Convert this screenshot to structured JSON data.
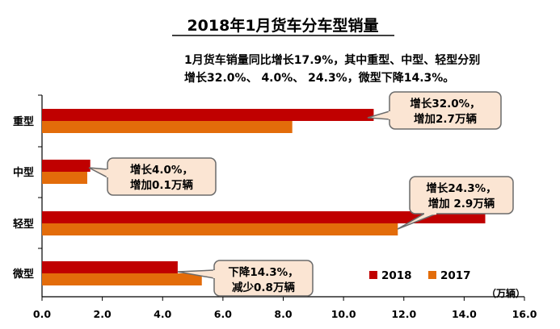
{
  "chart_data": {
    "type": "bar",
    "orientation": "horizontal",
    "title": "2018年1月货车分车型销量",
    "subtitle_lines": [
      "1月货车销量同比增长17.9%，其中重型、中型、轻型分别",
      "增长32.0%、 4.0%、 24.3%，微型下降14.3%。"
    ],
    "categories": [
      "重型",
      "中型",
      "轻型",
      "微型"
    ],
    "series": [
      {
        "name": "2018",
        "color": "#c00000",
        "values": [
          11.0,
          1.6,
          14.7,
          4.5
        ]
      },
      {
        "name": "2017",
        "color": "#e36c0a",
        "values": [
          8.3,
          1.5,
          11.8,
          5.3
        ]
      }
    ],
    "xlim": [
      0,
      16
    ],
    "xticks": [
      "0.0",
      "2.0",
      "4.0",
      "6.0",
      "8.0",
      "10.0",
      "12.0",
      "14.0",
      "16.0"
    ],
    "unit_label": "（万辆）",
    "legend_position": "bottom-right",
    "annotations": [
      {
        "lines": [
          "增长32.0%，",
          "增加2.7万辆"
        ]
      },
      {
        "lines": [
          "增长4.0%，",
          "增加0.1万辆"
        ]
      },
      {
        "lines": [
          "增长24.3%，",
          "增加 2.9万辆"
        ]
      },
      {
        "lines": [
          "下降14.3%，",
          "减少0.8万辆"
        ]
      }
    ]
  }
}
